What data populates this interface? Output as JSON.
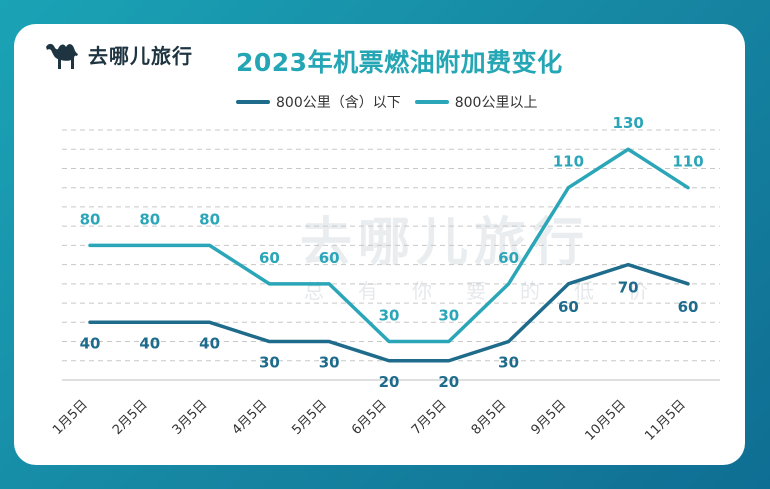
{
  "brand": {
    "name": "去哪儿旅行"
  },
  "watermark": {
    "name": "去哪儿旅行",
    "slogan": "总有你要的低价"
  },
  "colors": {
    "series1": "#1f6b8c",
    "series2": "#2ba6b8",
    "grid": "#c8c8c8",
    "title": "#25a6b5"
  },
  "chart_data": {
    "type": "line",
    "title": "2023年机票燃油附加费变化",
    "xlabel": "",
    "ylabel": "",
    "ylim": [
      10,
      140
    ],
    "grid": true,
    "legend": "top",
    "categories": [
      "1月5日",
      "2月5日",
      "3月5日",
      "4月5日",
      "5月5日",
      "6月5日",
      "7月5日",
      "8月5日",
      "9月5日",
      "10月5日",
      "11月5日"
    ],
    "series": [
      {
        "name": "800公里（含）以下",
        "values": [
          40,
          40,
          40,
          30,
          30,
          20,
          20,
          30,
          60,
          70,
          60
        ],
        "color": "#1f6b8c"
      },
      {
        "name": "800公里以上",
        "values": [
          80,
          80,
          80,
          60,
          60,
          30,
          30,
          60,
          110,
          130,
          110
        ],
        "color": "#2ba6b8"
      }
    ]
  }
}
